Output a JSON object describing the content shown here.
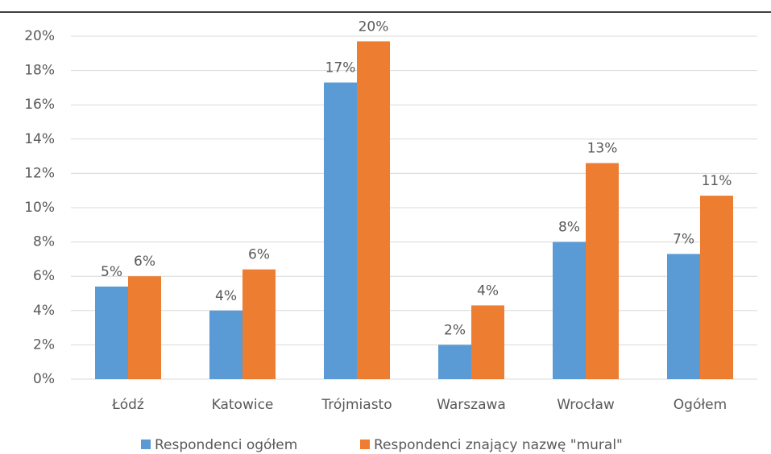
{
  "chart_data": {
    "type": "bar",
    "categories": [
      "Łódź",
      "Katowice",
      "Trójmiasto",
      "Warszawa",
      "Wrocław",
      "Ogółem"
    ],
    "series": [
      {
        "name": "Respondenci ogółem",
        "color": "#5b9bd5",
        "values": [
          5.4,
          4.0,
          17.3,
          2.0,
          8.0,
          7.3
        ],
        "value_labels": [
          "5%",
          "4%",
          "17%",
          "2%",
          "8%",
          "7%"
        ]
      },
      {
        "name": "Respondenci znający nazwę \"mural\"",
        "color": "#ed7d31",
        "values": [
          6.0,
          6.4,
          19.7,
          4.3,
          12.6,
          10.7
        ],
        "value_labels": [
          "6%",
          "6%",
          "20%",
          "4%",
          "13%",
          "11%"
        ]
      }
    ],
    "ylim": [
      0,
      20
    ],
    "yticks": [
      {
        "value": 0,
        "label": "0%"
      },
      {
        "value": 2,
        "label": "2%"
      },
      {
        "value": 4,
        "label": "4%"
      },
      {
        "value": 6,
        "label": "6%"
      },
      {
        "value": 8,
        "label": "8%"
      },
      {
        "value": 10,
        "label": "10%"
      },
      {
        "value": 12,
        "label": "12%"
      },
      {
        "value": 14,
        "label": "14%"
      },
      {
        "value": 16,
        "label": "16%"
      },
      {
        "value": 18,
        "label": "18%"
      },
      {
        "value": 20,
        "label": "20%"
      }
    ],
    "grid": true,
    "legend": "bottom"
  }
}
